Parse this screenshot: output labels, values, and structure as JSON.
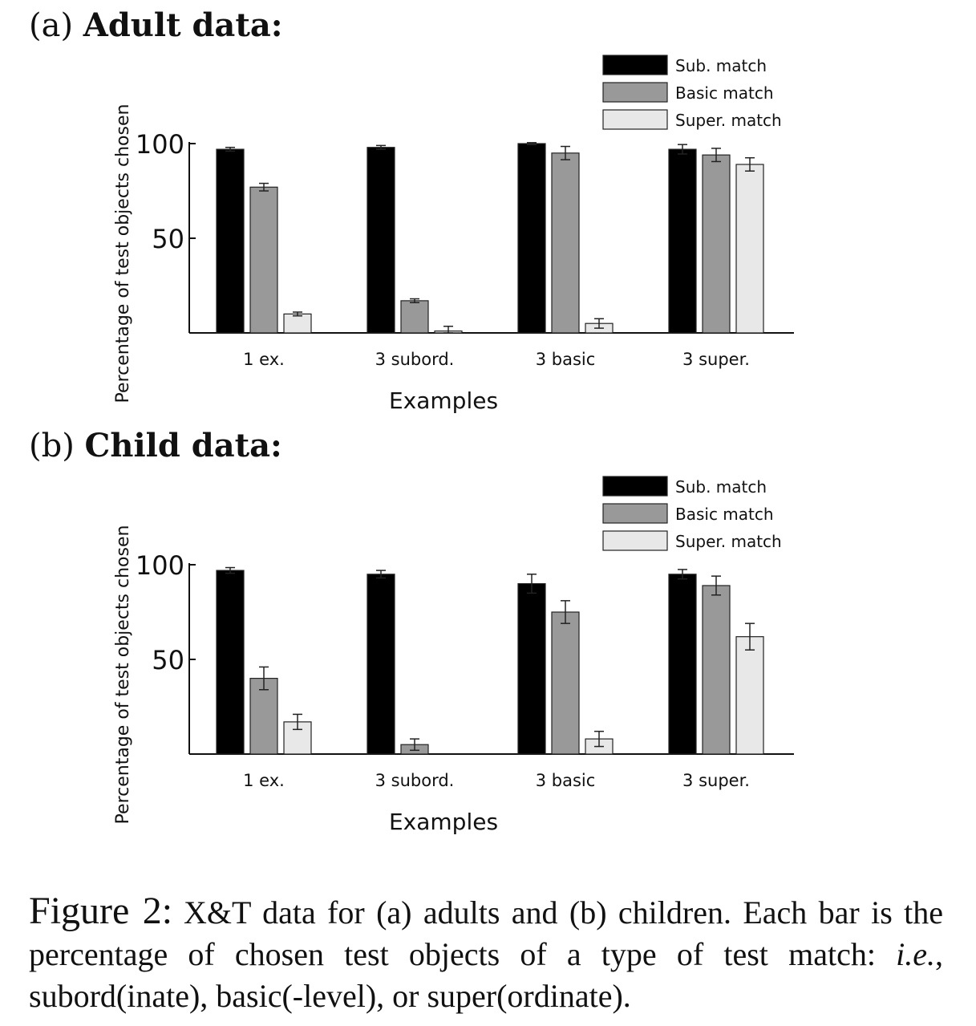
{
  "colors": {
    "sub": "#000000",
    "basic": "#999999",
    "super": "#e8e8e8",
    "axis": "#111111"
  },
  "panels": [
    {
      "tag": "(a)",
      "title": "Adult data:"
    },
    {
      "tag": "(b)",
      "title": "Child data:"
    }
  ],
  "caption": {
    "figure_label": "Figure 2:",
    "part1": "X&T data for (a) adults and (b) children. Each bar is the percentage of chosen test objects of a type of test match: ",
    "ie": "i.e.",
    "part2": ", subord(inate), basic(-level), or super(ordinate)."
  },
  "chart_data": [
    {
      "type": "bar",
      "categories": [
        "1 ex.",
        "3 subord.",
        "3 basic",
        "3 super."
      ],
      "xlabel": "Examples",
      "ylabel": "Percentage of test objects chosen",
      "ylim": [
        0,
        100
      ],
      "yticks": [
        50,
        100
      ],
      "legend_position": "top-right",
      "series": [
        {
          "name": "Sub. match",
          "color": "#000000",
          "values": [
            97,
            98,
            100,
            97
          ],
          "errors": [
            1,
            1,
            0.5,
            2.5
          ]
        },
        {
          "name": "Basic match",
          "color": "#999999",
          "values": [
            77,
            17,
            95,
            94
          ],
          "errors": [
            2,
            1,
            3.5,
            3.5
          ]
        },
        {
          "name": "Super. match",
          "color": "#e8e8e8",
          "values": [
            10,
            1,
            5,
            89
          ],
          "errors": [
            1,
            2.5,
            2.5,
            3.5
          ]
        }
      ]
    },
    {
      "type": "bar",
      "categories": [
        "1 ex.",
        "3 subord.",
        "3 basic",
        "3 super."
      ],
      "xlabel": "Examples",
      "ylabel": "Percentage of test objects chosen",
      "ylim": [
        0,
        100
      ],
      "yticks": [
        50,
        100
      ],
      "legend_position": "top-right",
      "series": [
        {
          "name": "Sub. match",
          "color": "#000000",
          "values": [
            97,
            95,
            90,
            95
          ],
          "errors": [
            1.5,
            2,
            5,
            2.5
          ]
        },
        {
          "name": "Basic match",
          "color": "#999999",
          "values": [
            40,
            5,
            75,
            89
          ],
          "errors": [
            6,
            3,
            6,
            5
          ]
        },
        {
          "name": "Super. match",
          "color": "#e8e8e8",
          "values": [
            17,
            0,
            8,
            62
          ],
          "errors": [
            4,
            0,
            4,
            7
          ]
        }
      ]
    }
  ]
}
